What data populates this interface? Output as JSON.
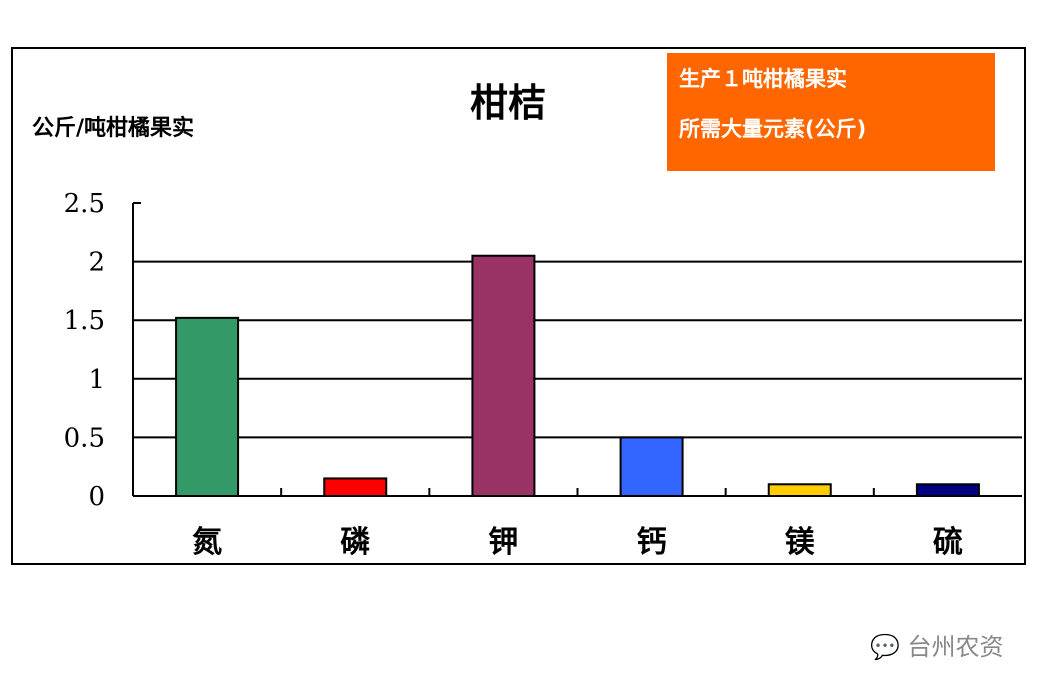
{
  "chart_data": {
    "type": "bar",
    "title": "柑桔",
    "ylabel": "公斤/吨柑橘果实",
    "annotation": [
      "生产１吨柑橘果实",
      "所需大量元素(公斤)"
    ],
    "categories": [
      "氮",
      "磷",
      "钾",
      "钙",
      "镁",
      "硫"
    ],
    "values": [
      1.52,
      0.15,
      2.05,
      0.5,
      0.1,
      0.1
    ],
    "colors": [
      "#339966",
      "#ff0000",
      "#993366",
      "#3366ff",
      "#ffcc00",
      "#000080"
    ],
    "ylim": [
      0,
      2.5
    ],
    "yticks": [
      "0",
      "0.5",
      "1",
      "1.5",
      "2",
      "2.5"
    ],
    "grid": true
  },
  "watermark": "台州农资",
  "watermark_icon": "wechat-icon"
}
